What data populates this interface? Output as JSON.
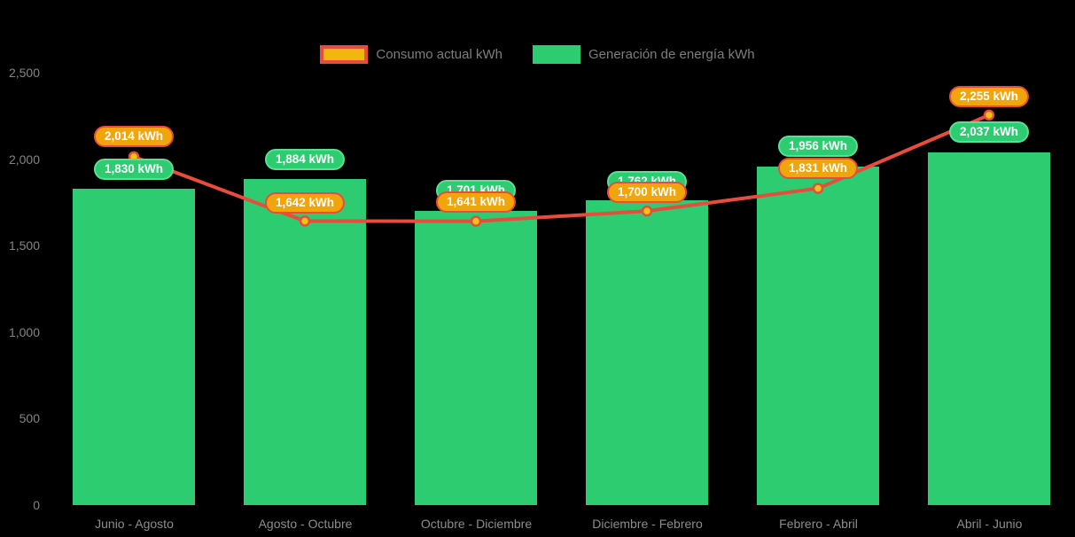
{
  "legend": {
    "items": [
      {
        "label": "Consumo actual kWh",
        "swatch": "line-swatch",
        "border_color": "#e74c3c",
        "fill_color": "#f1b70e"
      },
      {
        "label": "Generación de energía kWh",
        "swatch": "bar-swatch",
        "fill_color": "#2ecc71"
      }
    ]
  },
  "chart_data": {
    "type": "combo-bar-line",
    "title": "",
    "xlabel": "",
    "ylabel": "",
    "background": "#000000",
    "grid": false,
    "legend_position": "top-center",
    "categories": [
      "Junio - Agosto",
      "Agosto - Octubre",
      "Octubre - Diciembre",
      "Diciembre - Febrero",
      "Febrero - Abril",
      "Abril - Junio"
    ],
    "series": [
      {
        "name": "Generación de energía kWh",
        "type": "bar",
        "color": "#2ecc71",
        "values": [
          1830,
          1884,
          1701,
          1762,
          1956,
          2037
        ],
        "labels": [
          "1,830 kWh",
          "1,884 kWh",
          "1,701 kWh",
          "1,762 kWh",
          "1,956 kWh",
          "2,037 kWh"
        ],
        "label_bg": "#2ecc71",
        "label_border": "#58e096"
      },
      {
        "name": "Consumo actual kWh",
        "type": "line",
        "color": "#e74c3c",
        "marker_fill": "#f1c40f",
        "marker_stroke": "#e74c3c",
        "values": [
          2014,
          1642,
          1641,
          1700,
          1831,
          2255
        ],
        "labels": [
          "2,014 kWh",
          "1,642 kWh",
          "1,641 kWh",
          "1,700 kWh",
          "1,831 kWh",
          "2,255 kWh"
        ],
        "label_bg": "#f0a50a",
        "label_border": "#e74c3c"
      }
    ],
    "ylim": [
      0,
      2500
    ],
    "yticks": [
      {
        "value": 2500,
        "label": "2,500"
      },
      {
        "value": 2000,
        "label": "2,000"
      },
      {
        "value": 1500,
        "label": "1,500"
      },
      {
        "value": 1000,
        "label": "1,000"
      },
      {
        "value": 500,
        "label": "500"
      },
      {
        "value": 0,
        "label": "0"
      }
    ],
    "text_color_axis": "#848484"
  }
}
